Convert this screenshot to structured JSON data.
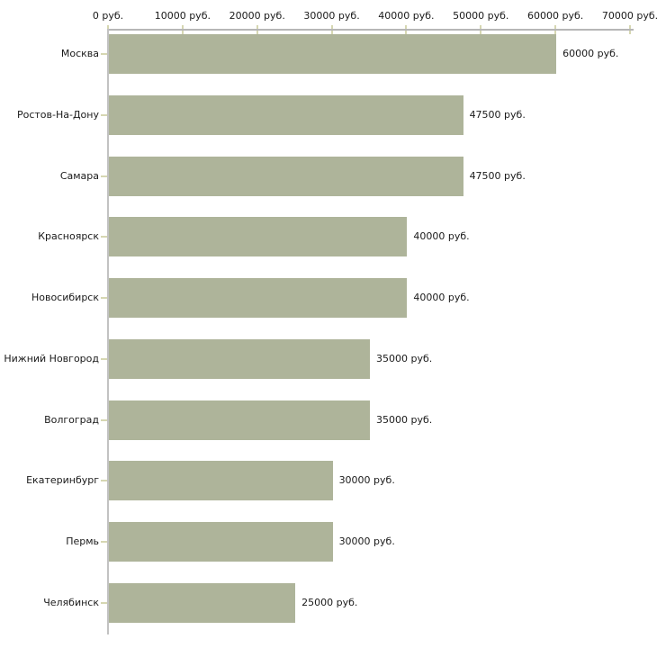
{
  "chart_data": {
    "type": "bar",
    "orientation": "horizontal",
    "title": "",
    "xlabel": "",
    "ylabel": "",
    "grid": false,
    "legend": false,
    "categories": [
      "Москва",
      "Ростов-На-Дону",
      "Самара",
      "Красноярск",
      "Новосибирск",
      "Нижний Новгород",
      "Волгоград",
      "Екатеринбург",
      "Пермь",
      "Челябинск"
    ],
    "values": [
      60000,
      47500,
      47500,
      40000,
      40000,
      35000,
      35000,
      30000,
      30000,
      25000
    ],
    "value_labels": [
      "60000 руб.",
      "47500 руб.",
      "47500 руб.",
      "40000 руб.",
      "40000 руб.",
      "35000 руб.",
      "35000 руб.",
      "30000 руб.",
      "30000 руб.",
      "25000 руб."
    ],
    "x_axis": {
      "min": 0,
      "max": 70000,
      "tick_values": [
        0,
        10000,
        20000,
        30000,
        40000,
        50000,
        60000,
        70000
      ],
      "tick_labels": [
        "0 руб.",
        "10000 руб.",
        "20000 руб.",
        "30000 руб.",
        "40000 руб.",
        "50000 руб.",
        "60000 руб.",
        "70000 руб."
      ]
    },
    "colors": {
      "bar": "#aeb49a",
      "axis_line_x": "#b6b6b6",
      "axis_line_y": "#c2c2c2",
      "tick": "#d6d7b2",
      "text": "#1a1a1a",
      "background": "#ffffff"
    }
  }
}
